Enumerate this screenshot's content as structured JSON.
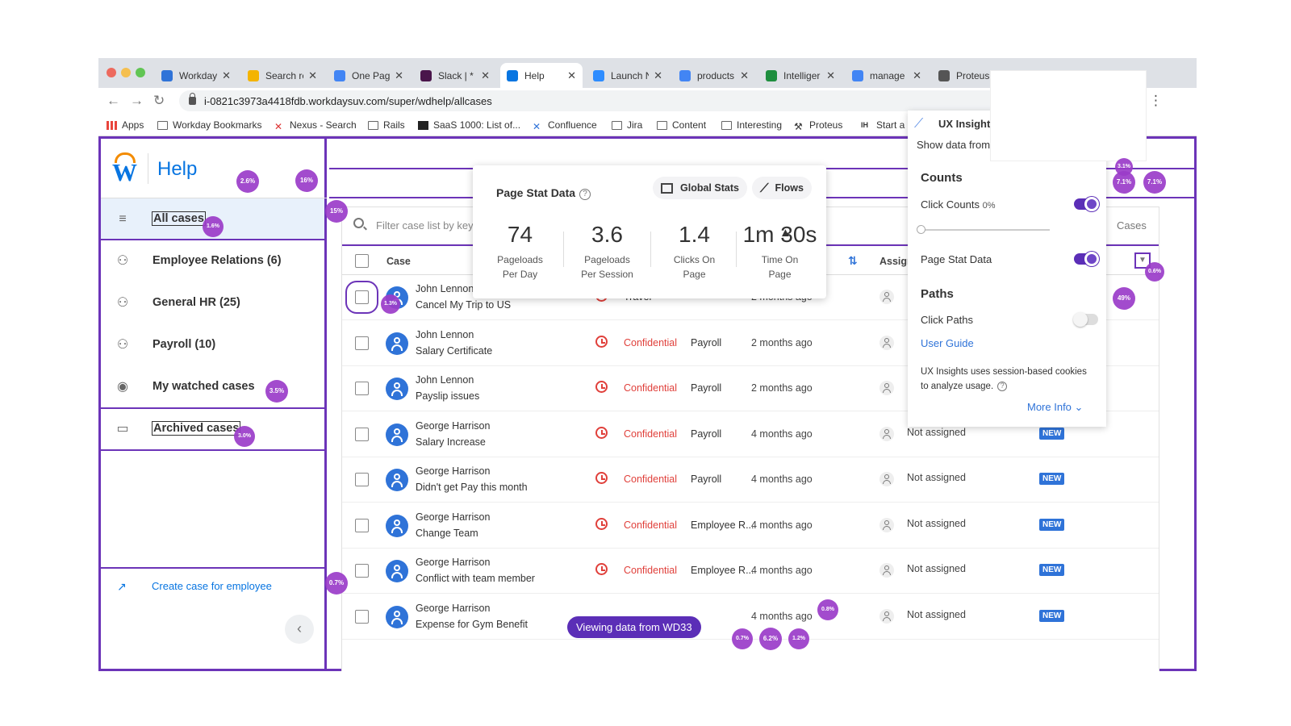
{
  "browser": {
    "tabs": [
      {
        "label": "Workday",
        "color": "#2f73d8"
      },
      {
        "label": "Search re",
        "color": "#f4b400"
      },
      {
        "label": "One Pag",
        "color": "#4285f4"
      },
      {
        "label": "Slack | *",
        "color": "#4a154b"
      },
      {
        "label": "Help",
        "color": "#0875e1",
        "active": true
      },
      {
        "label": "Launch N",
        "color": "#2d8cff"
      },
      {
        "label": "products",
        "color": "#4285f4"
      },
      {
        "label": "Intelliger",
        "color": "#1e8e3e"
      },
      {
        "label": "manage",
        "color": "#4285f4"
      },
      {
        "label": "Proteus",
        "color": "#555555"
      }
    ],
    "url": "i-0821c3973a4418fdb.workdaysuv.com/super/wdhelp/allcases",
    "bookmarks": [
      "Apps",
      "Workday Bookmarks",
      "Nexus - Search",
      "Rails",
      "SaaS 1000: List of...",
      "Confluence",
      "Jira",
      "Content",
      "Interesting",
      "Proteus",
      "Start a"
    ]
  },
  "app": {
    "title": "Help",
    "logo_letter": "W",
    "sidebar": {
      "items": [
        {
          "label": "All cases",
          "icon": "list-icon"
        },
        {
          "label": "Employee Relations (6)",
          "icon": "group-icon"
        },
        {
          "label": "General HR (25)",
          "icon": "group-icon"
        },
        {
          "label": "Payroll (10)",
          "icon": "group-icon"
        },
        {
          "label": "My watched cases",
          "icon": "eye-icon"
        },
        {
          "label": "Archived cases",
          "icon": "archive-icon"
        }
      ],
      "create_case": "Create case for employee"
    },
    "filter": {
      "placeholder": "Filter case list by keyw",
      "cases_label": "Cases"
    },
    "table": {
      "headers": {
        "case": "Case",
        "assignee": "Assigne"
      },
      "rows": [
        {
          "name": "John Lennon",
          "subject": "Cancel My Trip to US",
          "confidential": "",
          "category": "Travel",
          "time": "2 months ago",
          "assignee": "N",
          "new": ""
        },
        {
          "name": "John Lennon",
          "subject": "Salary Certificate",
          "confidential": "Confidential",
          "category": "Payroll",
          "time": "2 months ago",
          "assignee": "N",
          "new": ""
        },
        {
          "name": "John Lennon",
          "subject": "Payslip issues",
          "confidential": "Confidential",
          "category": "Payroll",
          "time": "2 months ago",
          "assignee": "N",
          "new": ""
        },
        {
          "name": "George Harrison",
          "subject": "Salary Increase",
          "confidential": "Confidential",
          "category": "Payroll",
          "time": "4 months ago",
          "assignee": "Not assigned",
          "new": "NEW"
        },
        {
          "name": "George Harrison",
          "subject": "Didn't get Pay this month",
          "confidential": "Confidential",
          "category": "Payroll",
          "time": "4 months ago",
          "assignee": "Not assigned",
          "new": "NEW"
        },
        {
          "name": "George Harrison",
          "subject": "Change Team",
          "confidential": "Confidential",
          "category": "Employee R...",
          "time": "4 months ago",
          "assignee": "Not assigned",
          "new": "NEW"
        },
        {
          "name": "George Harrison",
          "subject": "Conflict with team member",
          "confidential": "Confidential",
          "category": "Employee R...",
          "time": "4 months ago",
          "assignee": "Not assigned",
          "new": "NEW"
        },
        {
          "name": "George Harrison",
          "subject": "Expense for Gym Benefit",
          "confidential": "",
          "category": "",
          "time": "4 months ago",
          "assignee": "Not assigned",
          "new": "NEW"
        }
      ]
    }
  },
  "stat_card": {
    "title": "Page Stat Data",
    "global_stats": "Global Stats",
    "flows": "Flows",
    "stats": [
      {
        "value": "74",
        "line1": "Pageloads",
        "line2": "Per Day"
      },
      {
        "value": "3.6",
        "line1": "Pageloads",
        "line2": "Per Session"
      },
      {
        "value": "1.4",
        "line1": "Clicks On",
        "line2": "Page"
      },
      {
        "value": "1m 30s",
        "line1": "Time On",
        "line2": "Page"
      }
    ]
  },
  "ux_insights": {
    "title": "UX Insights",
    "show_data_from": "Show data from",
    "counts_heading": "Counts",
    "click_counts": "Click Counts",
    "click_counts_pct": "0%",
    "page_stat_data": "Page Stat Data",
    "paths_heading": "Paths",
    "click_paths": "Click Paths",
    "user_guide": "User Guide",
    "cookie_line1": "UX Insights uses session-based cookies",
    "cookie_line2": "to analyze usage.",
    "more_info": "More Info",
    "click_counts_on": true,
    "page_stat_on": true,
    "click_paths_on": false
  },
  "overlay": {
    "viewing_label": "Viewing data from WD33",
    "bubbles": [
      "2.6%",
      "16%",
      "15%",
      "1.6%",
      "3.5%",
      "3.0%",
      "0.7%",
      "1.3%",
      "0.8%",
      "0.7%",
      "6.2%",
      "1.2%",
      "49%",
      "0.6%",
      "3.1%",
      "7.1%",
      "7.1%"
    ]
  },
  "colors": {
    "accent": "#6c34b8",
    "brand_blue": "#0875e1",
    "confidential_red": "#e0403b",
    "bubble": "#9b3cc9"
  }
}
